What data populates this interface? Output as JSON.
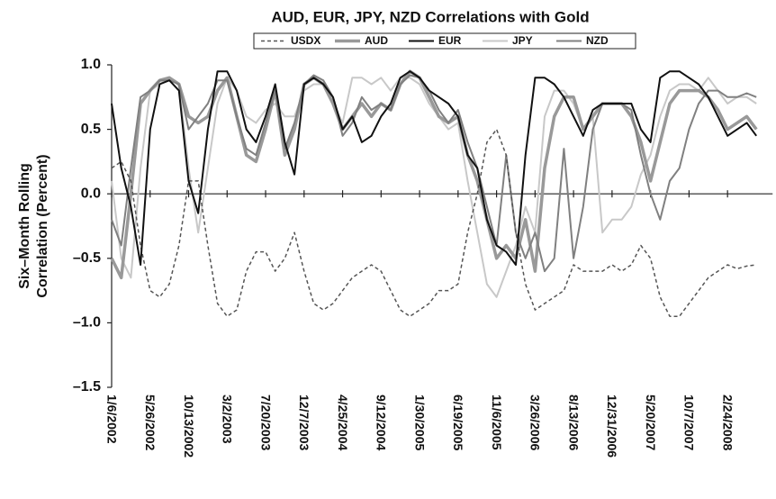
{
  "chart_data": {
    "type": "line",
    "title": "AUD, EUR, JPY, NZD Correlations with Gold",
    "ylabel": [
      "Six–Month Rolling",
      "Correlation (Percent)"
    ],
    "categories": [
      "1/6/2002",
      null,
      null,
      null,
      "5/26/2002",
      null,
      null,
      null,
      "10/13/2002",
      null,
      null,
      null,
      "3/2/2003",
      null,
      null,
      null,
      "7/20/2003",
      null,
      null,
      null,
      "12/7/2003",
      null,
      null,
      null,
      "4/25/2004",
      null,
      null,
      null,
      "9/12/2004",
      null,
      null,
      null,
      "1/30/2005",
      null,
      null,
      null,
      "6/19/2005",
      null,
      null,
      null,
      "11/6/2005",
      null,
      null,
      null,
      "3/26/2006",
      null,
      null,
      null,
      "8/13/2006",
      null,
      null,
      null,
      "12/31/2006",
      null,
      null,
      null,
      "5/20/2007",
      null,
      null,
      null,
      "10/7/2007",
      null,
      null,
      null,
      "2/24/2008",
      null,
      null,
      null
    ],
    "ylim": [
      -1.5,
      1.0
    ],
    "yticks": [
      {
        "value": -1.5,
        "label": "–1.5"
      },
      {
        "value": -1.0,
        "label": "–1.0"
      },
      {
        "value": -0.5,
        "label": "–0.5"
      },
      {
        "value": 0,
        "label": "0.0"
      },
      0.5,
      {
        "value": 1.0,
        "label": "1.0"
      }
    ],
    "legend": "top",
    "series": [
      {
        "name": "USDX",
        "color": "#555555",
        "style": "dashed",
        "width": 1.5,
        "values": [
          0.2,
          0.25,
          0.1,
          -0.4,
          -0.75,
          -0.8,
          -0.7,
          -0.4,
          0.1,
          0.1,
          -0.4,
          -0.85,
          -0.95,
          -0.9,
          -0.6,
          -0.45,
          -0.45,
          -0.6,
          -0.5,
          -0.3,
          -0.6,
          -0.85,
          -0.9,
          -0.85,
          -0.75,
          -0.65,
          -0.6,
          -0.55,
          -0.6,
          -0.75,
          -0.9,
          -0.95,
          -0.9,
          -0.85,
          -0.75,
          -0.75,
          -0.7,
          -0.3,
          0.0,
          0.4,
          0.5,
          0.3,
          -0.3,
          -0.7,
          -0.9,
          -0.85,
          -0.8,
          -0.75,
          -0.55,
          -0.6,
          -0.6,
          -0.6,
          -0.55,
          -0.6,
          -0.55,
          -0.4,
          -0.5,
          -0.8,
          -0.95,
          -0.95,
          -0.85,
          -0.75,
          -0.65,
          -0.6,
          -0.55,
          -0.58,
          -0.56,
          -0.55
        ]
      },
      {
        "name": "AUD",
        "color": "#999999",
        "style": "solid",
        "width": 3.5,
        "values": [
          -0.5,
          -0.65,
          0.0,
          0.7,
          0.8,
          0.88,
          0.9,
          0.85,
          0.6,
          0.55,
          0.6,
          0.8,
          0.9,
          0.6,
          0.3,
          0.25,
          0.5,
          0.8,
          0.3,
          0.5,
          0.85,
          0.9,
          0.85,
          0.7,
          0.5,
          0.6,
          0.7,
          0.6,
          0.7,
          0.65,
          0.85,
          0.95,
          0.9,
          0.75,
          0.6,
          0.55,
          0.6,
          0.3,
          0.1,
          -0.2,
          -0.5,
          -0.4,
          -0.5,
          -0.2,
          -0.6,
          0.2,
          0.6,
          0.75,
          0.75,
          0.5,
          0.6,
          0.7,
          0.7,
          0.7,
          0.6,
          0.4,
          0.1,
          0.4,
          0.7,
          0.8,
          0.8,
          0.8,
          0.75,
          0.65,
          0.5,
          0.55,
          0.6,
          0.5
        ]
      },
      {
        "name": "EUR",
        "color": "#111111",
        "style": "solid",
        "width": 2,
        "values": [
          0.7,
          0.2,
          -0.1,
          -0.55,
          0.5,
          0.85,
          0.88,
          0.8,
          0.1,
          -0.15,
          0.5,
          0.95,
          0.95,
          0.8,
          0.5,
          0.4,
          0.6,
          0.85,
          0.4,
          0.15,
          0.85,
          0.9,
          0.85,
          0.75,
          0.5,
          0.6,
          0.4,
          0.45,
          0.6,
          0.7,
          0.9,
          0.95,
          0.9,
          0.8,
          0.75,
          0.7,
          0.6,
          0.3,
          0.2,
          -0.2,
          -0.4,
          -0.45,
          -0.55,
          0.3,
          0.9,
          0.9,
          0.85,
          0.75,
          0.6,
          0.45,
          0.65,
          0.7,
          0.7,
          0.7,
          0.7,
          0.5,
          0.4,
          0.9,
          0.95,
          0.95,
          0.9,
          0.85,
          0.75,
          0.6,
          0.45,
          0.5,
          0.55,
          0.45
        ]
      },
      {
        "name": "JPY",
        "color": "#c8c8c8",
        "style": "solid",
        "width": 2,
        "values": [
          0.1,
          -0.5,
          -0.65,
          0.2,
          0.8,
          0.85,
          0.9,
          0.85,
          0.2,
          -0.3,
          0.2,
          0.7,
          0.9,
          0.8,
          0.6,
          0.55,
          0.65,
          0.7,
          0.6,
          0.6,
          0.8,
          0.85,
          0.85,
          0.7,
          0.55,
          0.9,
          0.9,
          0.85,
          0.9,
          0.8,
          0.9,
          0.9,
          0.85,
          0.7,
          0.6,
          0.5,
          0.55,
          0.1,
          -0.3,
          -0.7,
          -0.8,
          -0.6,
          -0.4,
          -0.1,
          -0.3,
          0.6,
          0.8,
          0.8,
          0.7,
          0.5,
          0.6,
          -0.3,
          -0.2,
          -0.2,
          -0.1,
          0.15,
          0.3,
          0.6,
          0.8,
          0.85,
          0.85,
          0.8,
          0.9,
          0.8,
          0.7,
          0.75,
          0.75,
          0.7
        ]
      },
      {
        "name": "NZD",
        "color": "#808080",
        "style": "solid",
        "width": 2,
        "values": [
          -0.2,
          -0.4,
          0.2,
          0.75,
          0.8,
          0.88,
          0.88,
          0.85,
          0.5,
          0.6,
          0.7,
          0.88,
          0.88,
          0.6,
          0.35,
          0.3,
          0.55,
          0.8,
          0.35,
          0.55,
          0.85,
          0.92,
          0.88,
          0.75,
          0.45,
          0.55,
          0.75,
          0.65,
          0.7,
          0.65,
          0.85,
          0.92,
          0.9,
          0.8,
          0.65,
          0.55,
          0.65,
          0.4,
          0.2,
          -0.1,
          -0.4,
          0.3,
          -0.3,
          -0.5,
          -0.3,
          -0.6,
          -0.5,
          0.35,
          -0.5,
          -0.1,
          0.5,
          0.7,
          0.7,
          0.7,
          0.65,
          0.3,
          0.0,
          -0.2,
          0.1,
          0.2,
          0.5,
          0.7,
          0.8,
          0.8,
          0.75,
          0.75,
          0.78,
          0.75
        ]
      }
    ]
  }
}
